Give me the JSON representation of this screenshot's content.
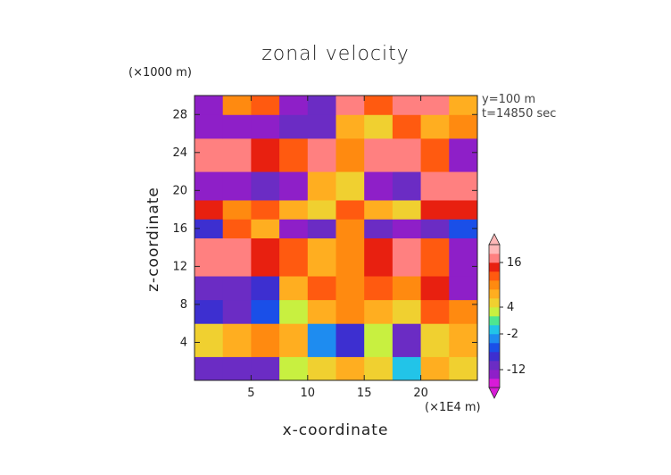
{
  "chart_data": {
    "type": "heatmap",
    "title": "zonal velocity",
    "xlabel": "x-coordinate",
    "ylabel": "z-coordinate",
    "x_unit": "(×1E4 m)",
    "z_unit": "(×1000 m)",
    "xlim": [
      0,
      25
    ],
    "ylim": [
      0,
      30
    ],
    "x_ticks": [
      5,
      10,
      15,
      20
    ],
    "y_ticks": [
      4,
      8,
      12,
      16,
      20,
      24,
      28
    ],
    "annotations": [
      "y=100 m",
      "t=14850 sec"
    ],
    "colorbar": {
      "tick_labels": [
        16,
        4,
        -2,
        -12
      ],
      "levels": [
        -20,
        -16,
        -12,
        -8,
        -6,
        -4,
        -2,
        0,
        2,
        4,
        6,
        8,
        10,
        12,
        16,
        20
      ],
      "colors": [
        "#d81bd8",
        "#8e1fc8",
        "#6b2cc4",
        "#3d2fd0",
        "#1a4fe8",
        "#1e8cf0",
        "#22c4e8",
        "#4ee690",
        "#c8f040",
        "#f0d030",
        "#ffae20",
        "#ff8a10",
        "#ff5a10",
        "#e82010",
        "#ff8080",
        "#ffb8b8"
      ],
      "extend": "both"
    },
    "bands": [
      {
        "z": [
          0,
          2.5
        ],
        "values": [
          -10,
          -9,
          -11,
          2,
          4,
          6,
          5,
          -2,
          6,
          4
        ]
      },
      {
        "z": [
          2.5,
          6
        ],
        "values": [
          4,
          6,
          8,
          6,
          -4,
          -8,
          2,
          -10,
          4,
          6
        ]
      },
      {
        "z": [
          6,
          8.5
        ],
        "values": [
          -8,
          -10,
          -6,
          2,
          6,
          8,
          6,
          4,
          10,
          8
        ]
      },
      {
        "z": [
          8.5,
          11
        ],
        "values": [
          -10,
          -12,
          -8,
          6,
          10,
          8,
          10,
          8,
          12,
          -14
        ]
      },
      {
        "z": [
          11,
          15
        ],
        "values": [
          18,
          16,
          14,
          10,
          6,
          8,
          14,
          16,
          10,
          -14
        ]
      },
      {
        "z": [
          15,
          17
        ],
        "values": [
          -8,
          10,
          6,
          -14,
          -10,
          8,
          -12,
          -14,
          -10,
          -6
        ]
      },
      {
        "z": [
          17,
          19
        ],
        "values": [
          12,
          8,
          10,
          6,
          4,
          10,
          6,
          4,
          12,
          14
        ]
      },
      {
        "z": [
          19,
          22
        ],
        "values": [
          -16,
          -14,
          -12,
          -14,
          6,
          4,
          -14,
          -12,
          16,
          18
        ]
      },
      {
        "z": [
          22,
          25.5
        ],
        "values": [
          18,
          16,
          14,
          10,
          18,
          8,
          16,
          18,
          10,
          -14
        ]
      },
      {
        "z": [
          25.5,
          28
        ],
        "values": [
          -14,
          -16,
          -14,
          -12,
          -10,
          6,
          4,
          10,
          6,
          8
        ]
      },
      {
        "z": [
          28,
          30
        ],
        "values": [
          -16,
          8,
          10,
          -14,
          -12,
          18,
          10,
          18,
          18,
          6
        ]
      }
    ]
  }
}
